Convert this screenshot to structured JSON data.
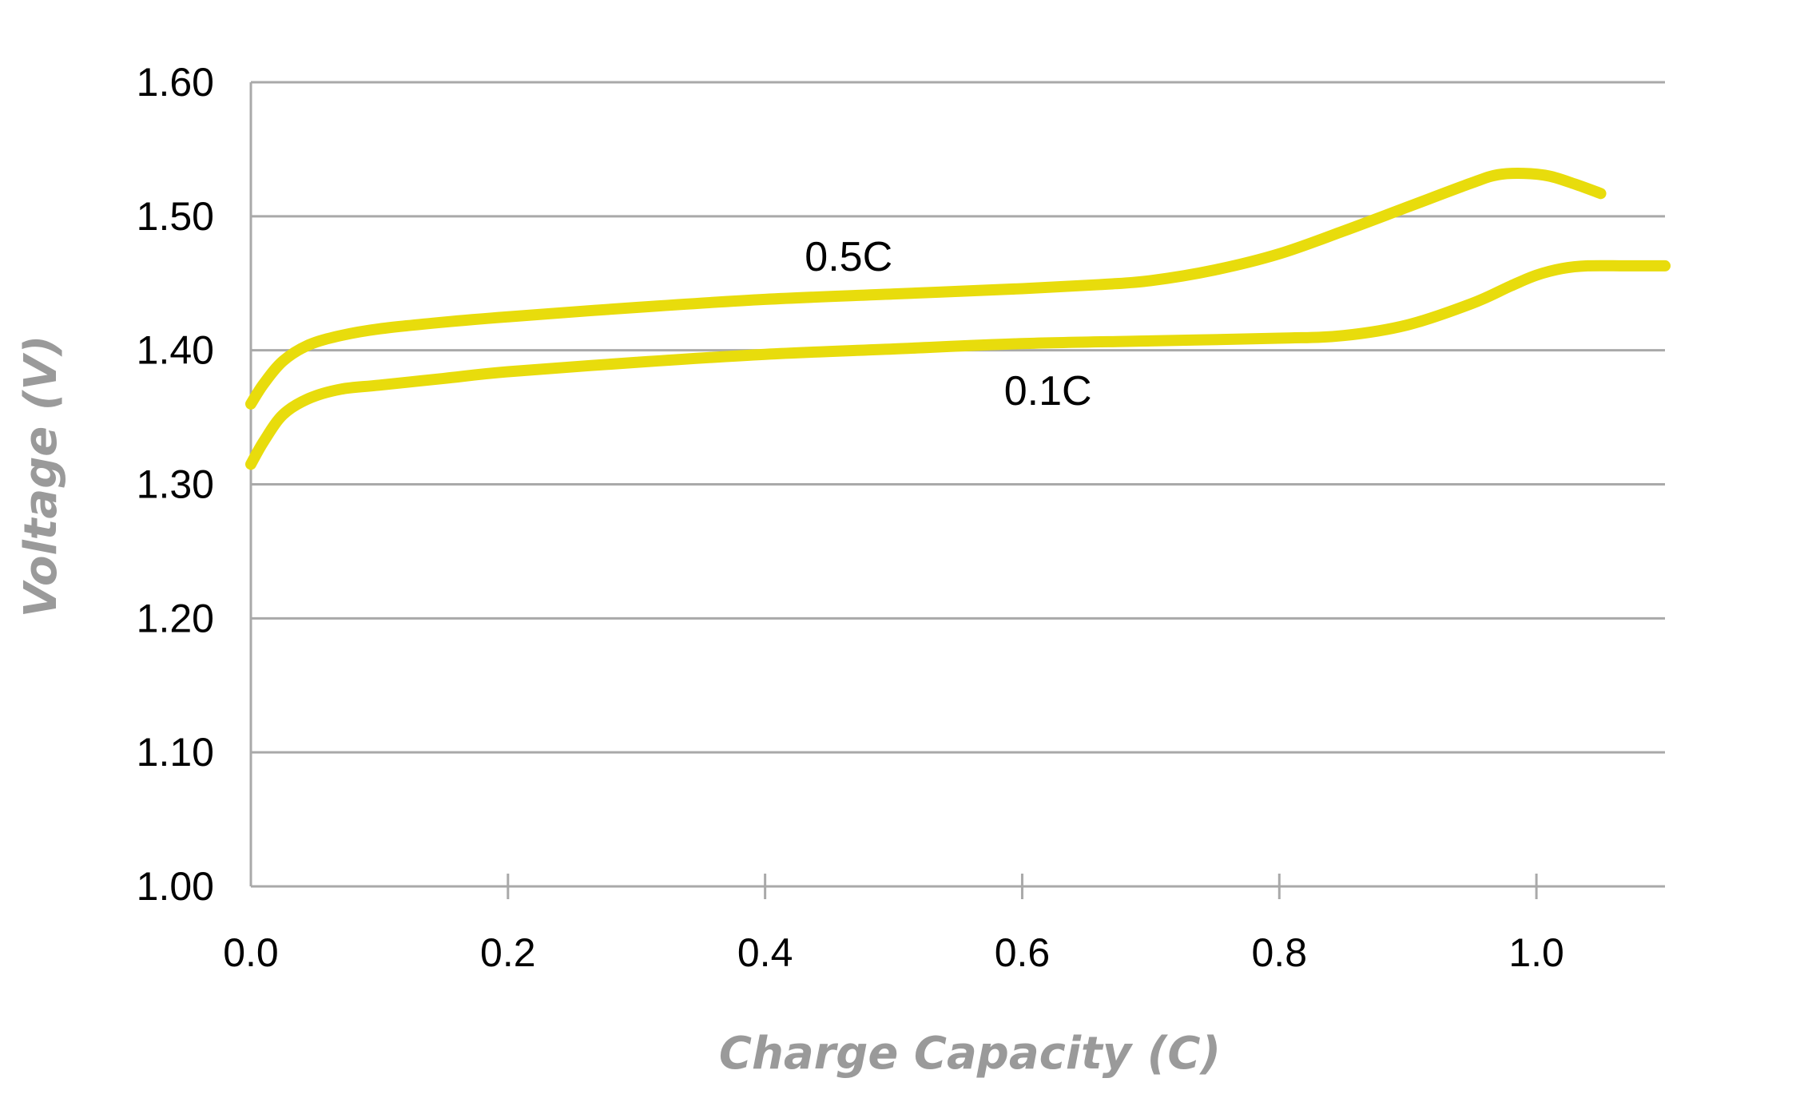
{
  "chart_data": {
    "type": "line",
    "title": "",
    "xlabel": "Charge Capacity (C)",
    "ylabel": "Voltage (V)",
    "xlim": [
      0.0,
      1.1
    ],
    "ylim": [
      1.0,
      1.6
    ],
    "x_ticks": [
      "0.0",
      "0.2",
      "0.4",
      "0.6",
      "0.8",
      "1.0"
    ],
    "x_tick_values": [
      0.0,
      0.2,
      0.4,
      0.6,
      0.8,
      1.0
    ],
    "y_ticks": [
      "1.00",
      "1.10",
      "1.20",
      "1.30",
      "1.40",
      "1.50",
      "1.60"
    ],
    "y_tick_values": [
      1.0,
      1.1,
      1.2,
      1.3,
      1.4,
      1.5,
      1.6
    ],
    "grid": "horizontal",
    "legend": "none",
    "series_color": "#e8dc0c",
    "series": [
      {
        "name": "0.5C",
        "x": [
          0.0,
          0.01,
          0.025,
          0.045,
          0.07,
          0.1,
          0.15,
          0.2,
          0.3,
          0.4,
          0.5,
          0.6,
          0.66,
          0.7,
          0.75,
          0.8,
          0.85,
          0.9,
          0.95,
          0.97,
          0.99,
          1.01,
          1.03,
          1.05
        ],
        "y": [
          1.36,
          1.375,
          1.392,
          1.404,
          1.411,
          1.416,
          1.421,
          1.425,
          1.432,
          1.438,
          1.442,
          1.446,
          1.449,
          1.452,
          1.46,
          1.472,
          1.489,
          1.507,
          1.525,
          1.531,
          1.532,
          1.53,
          1.524,
          1.517
        ]
      },
      {
        "name": "0.1C",
        "x": [
          0.0,
          0.01,
          0.025,
          0.045,
          0.07,
          0.1,
          0.15,
          0.2,
          0.3,
          0.4,
          0.5,
          0.6,
          0.7,
          0.8,
          0.85,
          0.9,
          0.95,
          0.98,
          1.0,
          1.02,
          1.04,
          1.07,
          1.1
        ],
        "y": [
          1.315,
          1.332,
          1.352,
          1.364,
          1.371,
          1.374,
          1.379,
          1.384,
          1.391,
          1.397,
          1.401,
          1.405,
          1.407,
          1.409,
          1.411,
          1.419,
          1.435,
          1.448,
          1.456,
          1.461,
          1.463,
          1.463,
          1.463
        ]
      }
    ],
    "annotations": [
      {
        "text": "0.5C",
        "x": 0.465,
        "y": 1.47,
        "series": "0.5C"
      },
      {
        "text": "0.1C",
        "x": 0.62,
        "y": 1.37,
        "series": "0.1C"
      }
    ]
  }
}
